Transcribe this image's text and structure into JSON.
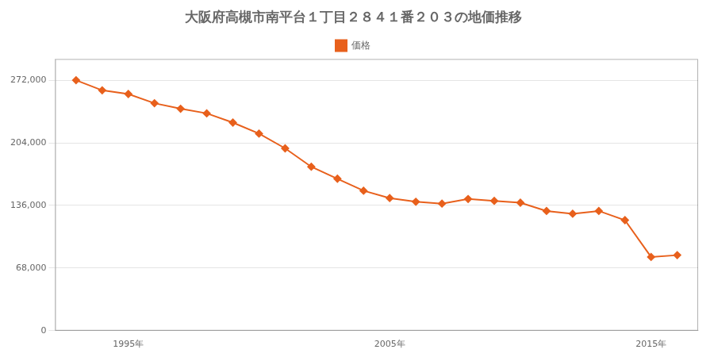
{
  "chart_data": {
    "type": "line",
    "title": "大阪府高槻市南平台１丁目２８４１番２０３の地価推移",
    "x": [
      1993,
      1994,
      1995,
      1996,
      1997,
      1998,
      1999,
      2000,
      2001,
      2002,
      2003,
      2004,
      2005,
      2006,
      2007,
      2008,
      2009,
      2010,
      2011,
      2012,
      2013,
      2014,
      2015,
      2016
    ],
    "series": [
      {
        "name": "価格",
        "color": "#E8601C",
        "marker": "diamond",
        "values": [
          272000,
          261000,
          257000,
          247000,
          241000,
          236000,
          226000,
          214000,
          198000,
          178000,
          165000,
          152000,
          144000,
          140000,
          138000,
          143000,
          141000,
          139000,
          130000,
          127000,
          130000,
          120000,
          80000,
          82000
        ]
      }
    ],
    "xlim": [
      1992.2,
      2016.8
    ],
    "xticks": [
      {
        "value": 1995,
        "label": "1995年"
      },
      {
        "value": 2005,
        "label": "2005年"
      },
      {
        "value": 2015,
        "label": "2015年"
      }
    ],
    "ylim": [
      0,
      295000
    ],
    "yticks": [
      0,
      {
        "value": 68000,
        "label": "68,000"
      },
      {
        "value": 136000,
        "label": "136,000"
      },
      {
        "value": 204000,
        "label": "204,000"
      },
      {
        "value": 272000,
        "label": "272,000"
      }
    ],
    "grid": "y",
    "legend": "top"
  }
}
